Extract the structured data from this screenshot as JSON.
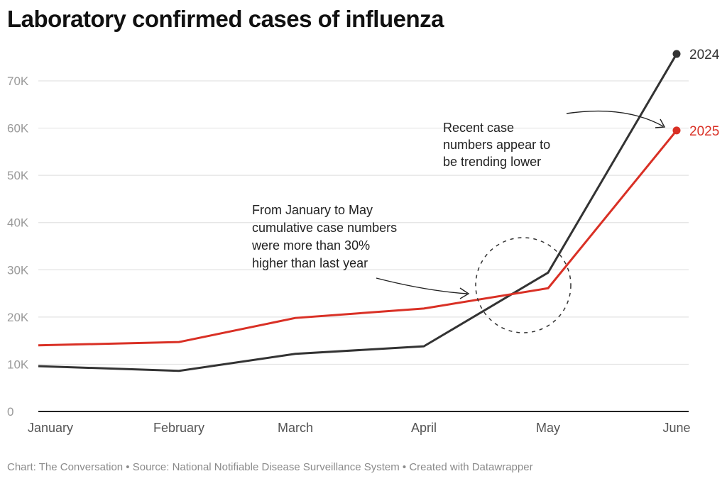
{
  "chart_data": {
    "type": "line",
    "title": "Laboratory confirmed cases of influenza",
    "categories": [
      "January",
      "February",
      "March",
      "April",
      "May",
      "June"
    ],
    "ylim": [
      0,
      70000
    ],
    "yticks": [
      0,
      10000,
      20000,
      30000,
      40000,
      50000,
      60000,
      70000
    ],
    "ytick_labels": [
      "0",
      "10K",
      "20K",
      "30K",
      "40K",
      "50K",
      "60K",
      "70K"
    ],
    "grid": true,
    "series": [
      {
        "name": "2024",
        "color": "#333333",
        "values": [
          9600,
          8600,
          12200,
          13800,
          29400,
          75700
        ]
      },
      {
        "name": "2025",
        "color": "#d93025",
        "values": [
          14000,
          14700,
          19800,
          21800,
          26100,
          59500
        ]
      }
    ],
    "annotations": [
      {
        "lines": [
          "From January to May",
          "cumulative case numbers",
          "were more than 30%",
          "higher than last year"
        ]
      },
      {
        "lines": [
          "Recent case",
          "numbers appear to",
          "be trending lower"
        ]
      }
    ]
  },
  "footer": "Chart: The Conversation • Source: National Notifiable Disease Surveillance System • Created with Datawrapper"
}
